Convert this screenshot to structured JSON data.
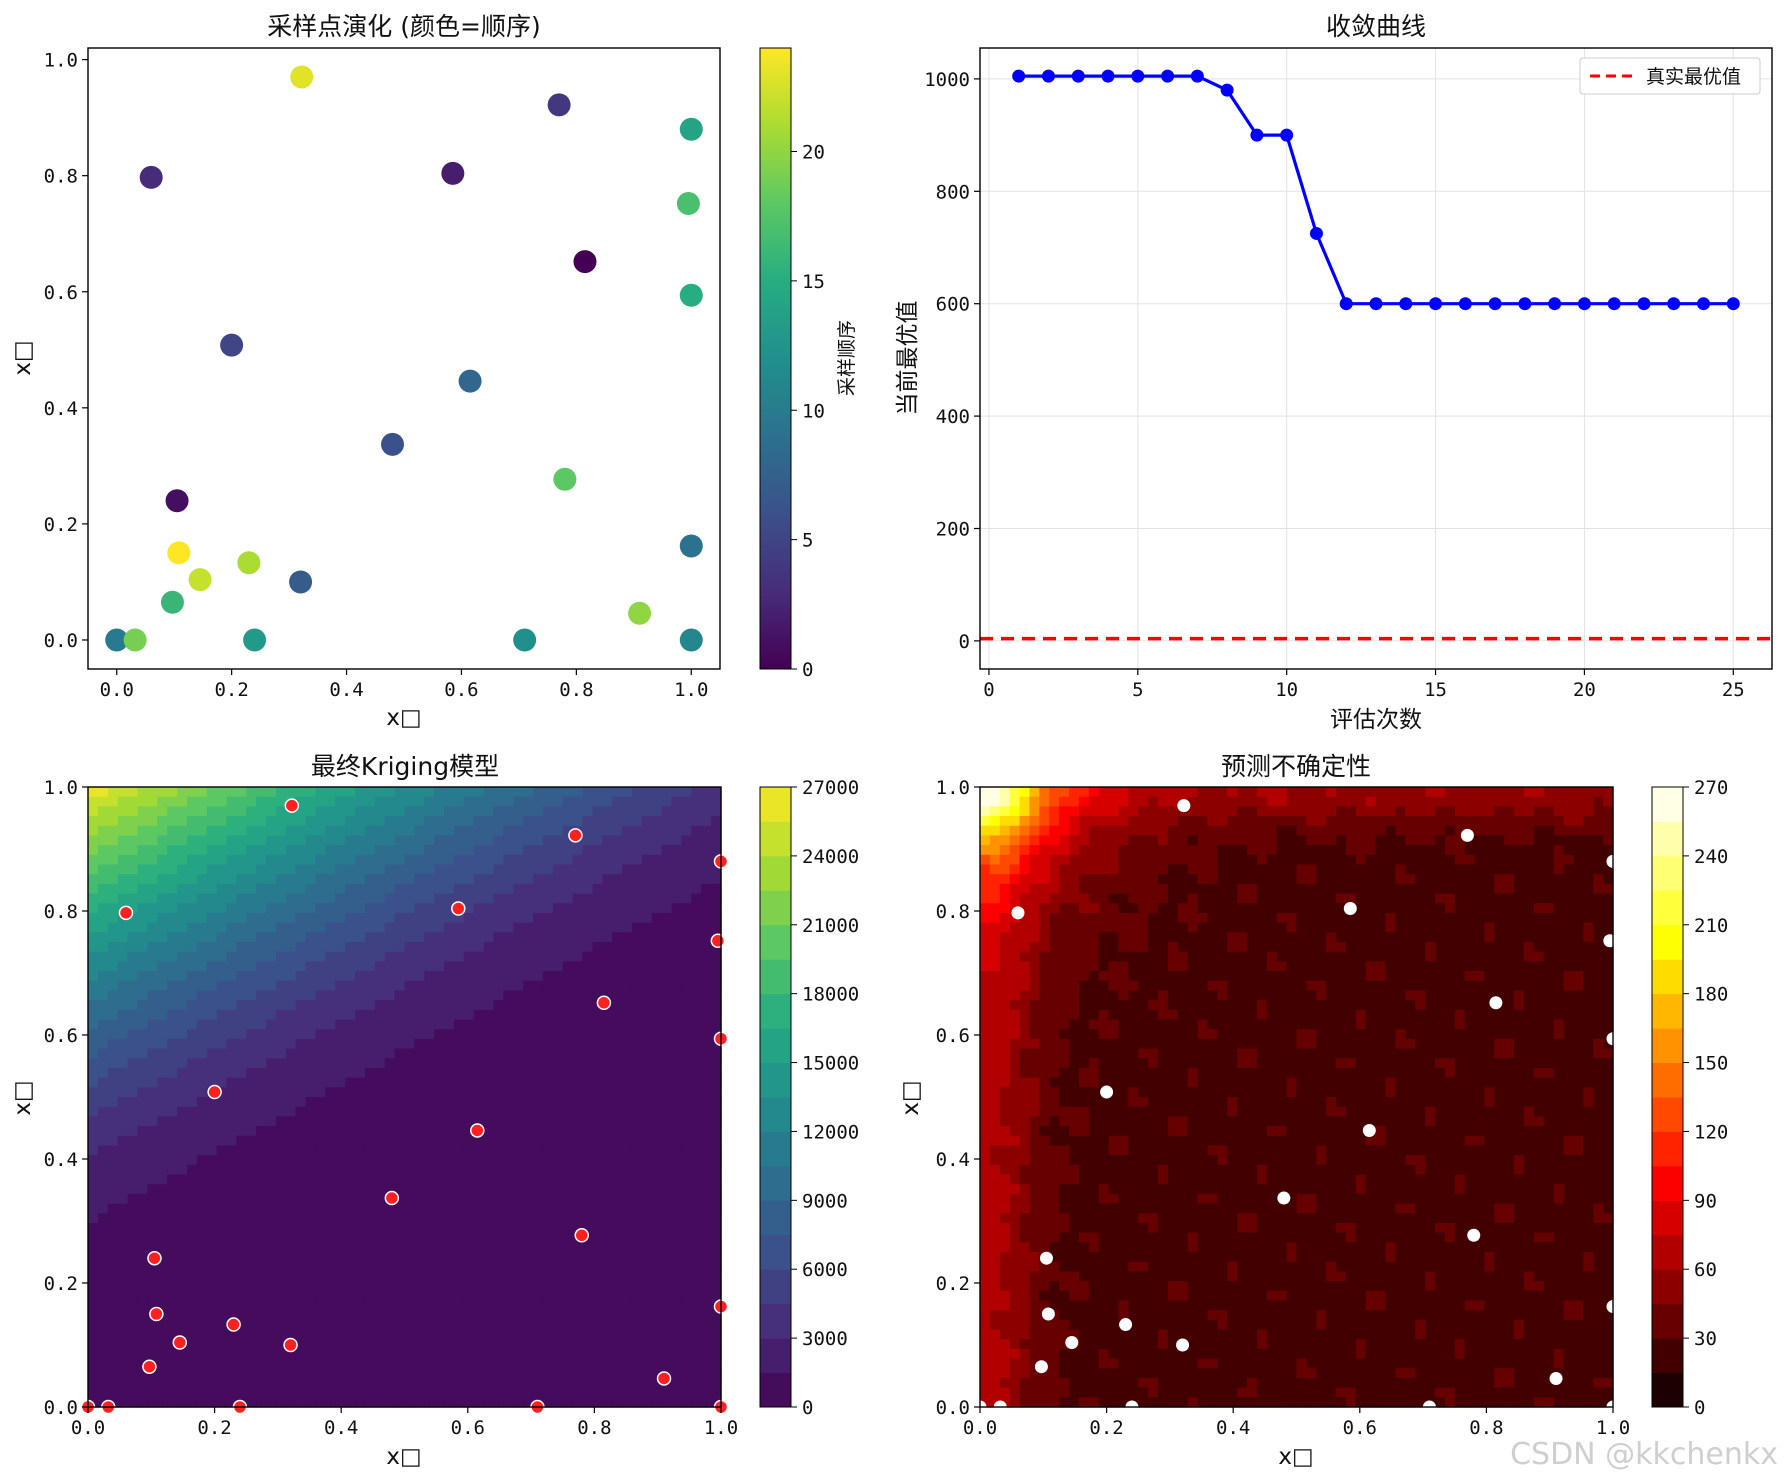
{
  "watermark": "CSDN @kkchenkx",
  "chart_data": [
    {
      "type": "scatter",
      "title": "采样点演化 (颜色=顺序)",
      "xlabel": "x□",
      "ylabel": "x□",
      "xlim": [
        -0.05,
        1.05
      ],
      "ylim": [
        -0.05,
        1.02
      ],
      "xticks": [
        "0.0",
        "0.2",
        "0.4",
        "0.6",
        "0.8",
        "1.0"
      ],
      "yticks": [
        "0.0",
        "0.2",
        "0.4",
        "0.6",
        "0.8",
        "1.0"
      ],
      "colorbar": {
        "label": "采样顺序",
        "range": [
          0,
          24
        ],
        "ticks": [
          "0",
          "5",
          "10",
          "15",
          "20"
        ],
        "cmap": "viridis"
      },
      "points": [
        {
          "x": 0.815,
          "y": 0.652,
          "order": 0
        },
        {
          "x": 0.105,
          "y": 0.24,
          "order": 1
        },
        {
          "x": 0.585,
          "y": 0.804,
          "order": 2
        },
        {
          "x": 0.06,
          "y": 0.797,
          "order": 3
        },
        {
          "x": 0.77,
          "y": 0.922,
          "order": 4
        },
        {
          "x": 0.2,
          "y": 0.508,
          "order": 5
        },
        {
          "x": 0.48,
          "y": 0.337,
          "order": 6
        },
        {
          "x": 0.32,
          "y": 0.1,
          "order": 7
        },
        {
          "x": 0.615,
          "y": 0.446,
          "order": 8
        },
        {
          "x": 1.0,
          "y": 0.162,
          "order": 9
        },
        {
          "x": 0.0,
          "y": 0.0,
          "order": 10
        },
        {
          "x": 1.0,
          "y": 0.0,
          "order": 11
        },
        {
          "x": 0.71,
          "y": 0.0,
          "order": 12
        },
        {
          "x": 0.24,
          "y": 0.0,
          "order": 13
        },
        {
          "x": 1.0,
          "y": 0.88,
          "order": 14
        },
        {
          "x": 1.0,
          "y": 0.594,
          "order": 15
        },
        {
          "x": 0.097,
          "y": 0.065,
          "order": 16
        },
        {
          "x": 0.995,
          "y": 0.752,
          "order": 17
        },
        {
          "x": 0.78,
          "y": 0.277,
          "order": 18
        },
        {
          "x": 0.032,
          "y": 0.0,
          "order": 19
        },
        {
          "x": 0.91,
          "y": 0.046,
          "order": 20
        },
        {
          "x": 0.23,
          "y": 0.133,
          "order": 21
        },
        {
          "x": 0.145,
          "y": 0.104,
          "order": 22
        },
        {
          "x": 0.322,
          "y": 0.97,
          "order": 23
        },
        {
          "x": 0.108,
          "y": 0.15,
          "order": 24
        }
      ]
    },
    {
      "type": "line",
      "title": "收敛曲线",
      "xlabel": "评估次数",
      "ylabel": "当前最优值",
      "xlim": [
        -0.3,
        26.3
      ],
      "ylim": [
        -50,
        1055
      ],
      "xticks": [
        "0",
        "5",
        "10",
        "15",
        "20",
        "25"
      ],
      "yticks": [
        "0",
        "200",
        "400",
        "600",
        "800",
        "1000"
      ],
      "grid": true,
      "legend": {
        "position": "top-right",
        "entries": [
          "真实最优值"
        ]
      },
      "x": [
        1,
        2,
        3,
        4,
        5,
        6,
        7,
        8,
        9,
        10,
        11,
        12,
        13,
        14,
        15,
        16,
        17,
        18,
        19,
        20,
        21,
        22,
        23,
        24,
        25
      ],
      "series": [
        {
          "name": "当前最优值",
          "color": "#0000ff",
          "values": [
            1005,
            1005,
            1005,
            1005,
            1005,
            1005,
            1005,
            980,
            900,
            900,
            725,
            600,
            600,
            600,
            600,
            600,
            600,
            600,
            600,
            600,
            600,
            600,
            600,
            600,
            600
          ]
        }
      ],
      "reference_line": {
        "name": "真实最优值",
        "value": 4,
        "color": "#ff0000",
        "style": "dashed"
      }
    },
    {
      "type": "heatmap",
      "title": "最终Kriging模型",
      "xlabel": "x□",
      "ylabel": "x□",
      "xlim": [
        0,
        1
      ],
      "ylim": [
        0,
        1
      ],
      "xticks": [
        "0.0",
        "0.2",
        "0.4",
        "0.6",
        "0.8",
        "1.0"
      ],
      "yticks": [
        "0.0",
        "0.2",
        "0.4",
        "0.6",
        "0.8",
        "1.0"
      ],
      "colorbar": {
        "range": [
          0,
          27000
        ],
        "ticks": [
          "0",
          "3000",
          "6000",
          "9000",
          "12000",
          "15000",
          "18000",
          "21000",
          "24000",
          "27000"
        ],
        "cmap": "viridis",
        "levels": 18
      },
      "sample_marker_color": "#ff2020"
    },
    {
      "type": "heatmap",
      "title": "预测不确定性",
      "xlabel": "x□",
      "ylabel": "x□",
      "xlim": [
        0,
        1
      ],
      "ylim": [
        0,
        1
      ],
      "xticks": [
        "0.0",
        "0.2",
        "0.4",
        "0.6",
        "0.8",
        "1.0"
      ],
      "yticks": [
        "0.0",
        "0.2",
        "0.4",
        "0.6",
        "0.8",
        "1.0"
      ],
      "colorbar": {
        "range": [
          0,
          270
        ],
        "ticks": [
          "0",
          "30",
          "60",
          "90",
          "120",
          "150",
          "180",
          "210",
          "240",
          "270"
        ],
        "cmap": "hot",
        "levels": 18
      },
      "sample_marker_color": "#ffffff"
    }
  ]
}
